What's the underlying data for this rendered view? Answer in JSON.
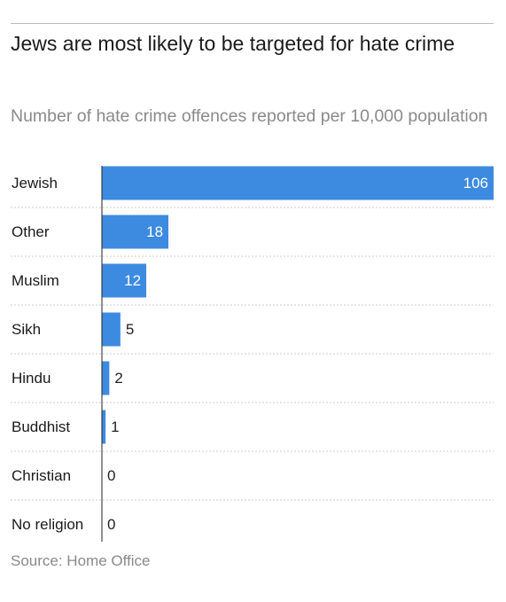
{
  "chart_data": {
    "type": "bar",
    "orientation": "horizontal",
    "title": "Jews are most likely to be targeted for hate crime",
    "subtitle": "Number of hate crime offences reported per 10,000 population",
    "source": "Source: Home Office",
    "categories": [
      "Jewish",
      "Other",
      "Muslim",
      "Sikh",
      "Hindu",
      "Buddhist",
      "Christian",
      "No religion"
    ],
    "values": [
      106,
      18,
      12,
      5,
      2,
      1,
      0,
      0
    ],
    "color": "#3d8be0",
    "xlim": [
      0,
      106
    ]
  }
}
